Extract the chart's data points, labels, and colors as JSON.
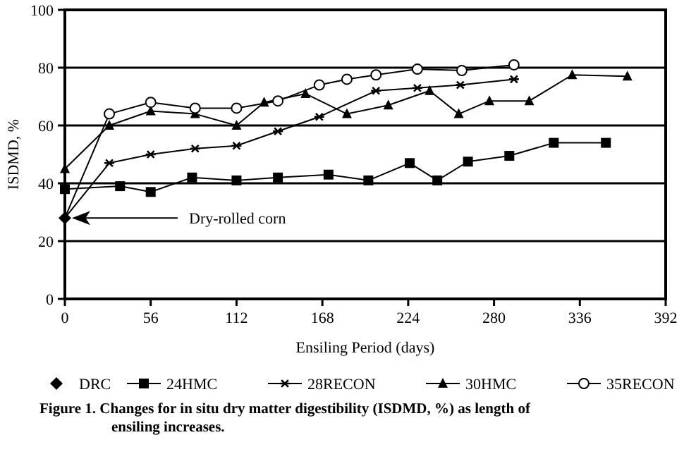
{
  "chart_data": {
    "type": "line",
    "title": "Figure 1. Changes for in situ dry matter digestibility (ISDMD, %) as length of ensiling increases.",
    "xlabel": "Ensiling Period (days)",
    "ylabel": "ISDMD, %",
    "xlim": [
      0,
      392
    ],
    "ylim": [
      0,
      100
    ],
    "xticks": [
      0,
      56,
      112,
      168,
      224,
      280,
      336,
      392
    ],
    "yticks": [
      0,
      20,
      40,
      60,
      80,
      100
    ],
    "grid": "y",
    "legend": "bottom",
    "annotations": [
      "Dry-rolled corn"
    ],
    "series": [
      {
        "name": "DRC",
        "type": "scatter",
        "marker": "diamond",
        "color": "#000000",
        "x": [
          0
        ],
        "values": [
          28
        ]
      },
      {
        "name": "24HMC",
        "marker": "square",
        "color": "#000000",
        "x": [
          0,
          36,
          56,
          83,
          112,
          139,
          172,
          198,
          225,
          243,
          263,
          290,
          319,
          353
        ],
        "values": [
          38,
          39,
          37,
          42,
          41,
          42,
          43,
          41,
          47,
          41,
          47.5,
          49.5,
          54,
          54
        ]
      },
      {
        "name": "28RECON",
        "marker": "cross",
        "color": "#000000",
        "x": [
          0,
          29,
          56,
          85,
          112,
          139,
          166,
          203,
          230,
          258,
          293
        ],
        "values": [
          28,
          47,
          50,
          52,
          53,
          58,
          63,
          72,
          73,
          74,
          76
        ]
      },
      {
        "name": "30HMC",
        "marker": "triangle",
        "color": "#000000",
        "x": [
          0,
          29,
          56,
          85,
          112,
          130,
          157,
          184,
          211,
          238,
          257,
          277,
          303,
          331,
          367
        ],
        "values": [
          45,
          60,
          65,
          64,
          60,
          68,
          71,
          64,
          67,
          72,
          64,
          68.5,
          68.5,
          77.5,
          77
        ]
      },
      {
        "name": "35RECON",
        "marker": "circle",
        "color": "#000000",
        "x": [
          0,
          29,
          56,
          85,
          112,
          139,
          166,
          184,
          203,
          230,
          259,
          293
        ],
        "values": [
          28,
          64,
          68,
          66,
          66,
          68.5,
          74,
          76,
          77.5,
          79.5,
          79,
          81
        ]
      }
    ]
  }
}
